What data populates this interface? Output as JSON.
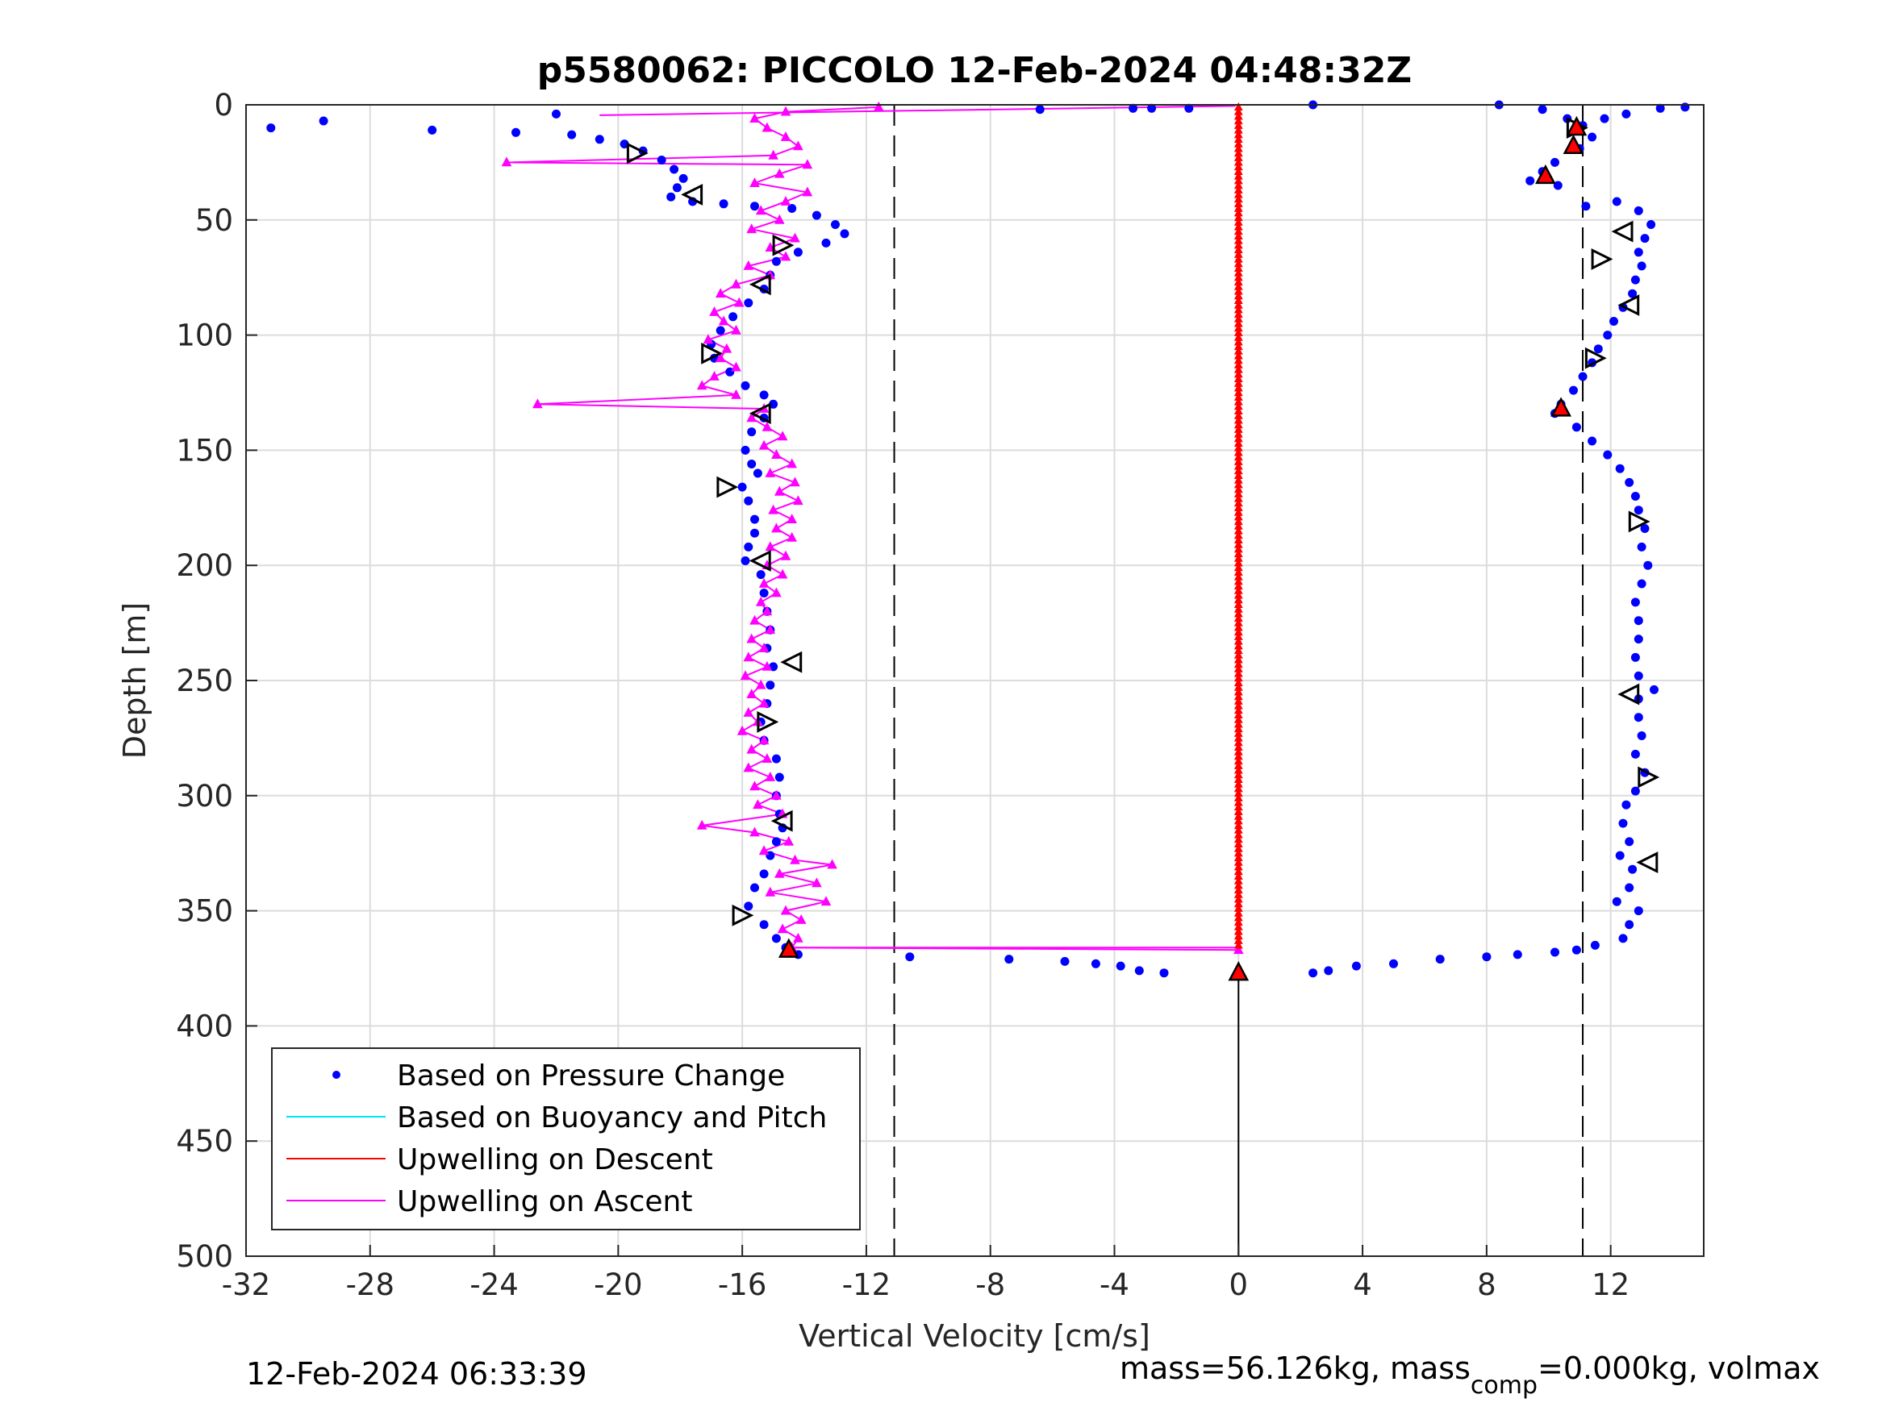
{
  "chart_data": {
    "type": "scatter",
    "title": "p5580062: PICCOLO 12-Feb-2024 04:48:32Z",
    "xlabel": "Vertical Velocity [cm/s]",
    "ylabel": "Depth [m]",
    "xlim": [
      -32,
      15
    ],
    "ylim": [
      0,
      500
    ],
    "y_reversed": true,
    "grid": true,
    "xticks": [
      -32,
      -28,
      -24,
      -20,
      -16,
      -12,
      -8,
      -4,
      0,
      4,
      8,
      12
    ],
    "yticks": [
      0,
      50,
      100,
      150,
      200,
      250,
      300,
      350,
      400,
      450,
      500
    ],
    "reference_lines_x": [
      -11.1,
      11.1
    ],
    "legend": {
      "placement": "bottom-left",
      "entries": [
        {
          "label": "Based on Pressure Change",
          "color": "#0000ff",
          "marker": "dot"
        },
        {
          "label": "Based on Buoyancy and Pitch",
          "color": "#00e5ee",
          "marker": "line"
        },
        {
          "label": "Upwelling on Descent",
          "color": "#ff0000",
          "marker": "line"
        },
        {
          "label": "Upwelling on Ascent",
          "color": "#ff00ff",
          "marker": "line"
        }
      ]
    },
    "series": [
      {
        "name": "Based on Pressure Change",
        "color": "#0000ff",
        "dive": [
          [
            -31.2,
            10
          ],
          [
            -29.5,
            7
          ],
          [
            -26,
            11
          ],
          [
            -23.3,
            12
          ],
          [
            -22,
            4
          ],
          [
            -21.5,
            13
          ],
          [
            -20.6,
            15
          ],
          [
            -19.8,
            17
          ],
          [
            -19.2,
            20
          ],
          [
            -18.6,
            24
          ],
          [
            -18.2,
            28
          ],
          [
            -17.9,
            32
          ],
          [
            -18.1,
            36
          ],
          [
            -18.3,
            40
          ],
          [
            -17.6,
            42
          ],
          [
            -16.6,
            43
          ],
          [
            -15.6,
            44
          ],
          [
            -14.4,
            45
          ],
          [
            -13.6,
            48
          ],
          [
            -13.0,
            52
          ],
          [
            -12.7,
            56
          ],
          [
            -13.3,
            60
          ],
          [
            -14.2,
            64
          ],
          [
            -14.9,
            68
          ],
          [
            -15.1,
            74
          ],
          [
            -15.3,
            80
          ],
          [
            -15.8,
            86
          ],
          [
            -16.3,
            92
          ],
          [
            -16.7,
            98
          ],
          [
            -17.0,
            104
          ],
          [
            -16.9,
            110
          ],
          [
            -16.4,
            116
          ],
          [
            -15.9,
            122
          ],
          [
            -15.3,
            126
          ],
          [
            -15.0,
            130
          ],
          [
            -15.3,
            136
          ],
          [
            -15.7,
            142
          ],
          [
            -15.9,
            150
          ],
          [
            -15.7,
            156
          ],
          [
            -15.5,
            160
          ],
          [
            -16.0,
            166
          ],
          [
            -15.8,
            172
          ],
          [
            -15.6,
            180
          ],
          [
            -15.6,
            186
          ],
          [
            -15.8,
            192
          ],
          [
            -15.9,
            198
          ],
          [
            -15.4,
            204
          ],
          [
            -15.3,
            212
          ],
          [
            -15.2,
            220
          ],
          [
            -15.1,
            228
          ],
          [
            -15.2,
            236
          ],
          [
            -15.0,
            244
          ],
          [
            -15.1,
            252
          ],
          [
            -15.2,
            260
          ],
          [
            -15.4,
            268
          ],
          [
            -15.3,
            276
          ],
          [
            -14.9,
            284
          ],
          [
            -14.8,
            292
          ],
          [
            -14.9,
            300
          ],
          [
            -14.8,
            308
          ],
          [
            -14.7,
            314
          ],
          [
            -14.9,
            320
          ],
          [
            -15.1,
            326
          ],
          [
            -15.3,
            334
          ],
          [
            -15.6,
            340
          ],
          [
            -15.8,
            348
          ],
          [
            -15.3,
            356
          ],
          [
            -14.9,
            362
          ],
          [
            -14.6,
            366
          ],
          [
            -14.2,
            369
          ],
          [
            -10.6,
            370
          ],
          [
            -7.4,
            371
          ],
          [
            -5.6,
            372
          ],
          [
            -4.6,
            373
          ],
          [
            -3.8,
            374
          ],
          [
            -3.2,
            376
          ],
          [
            -2.4,
            377
          ]
        ],
        "climb": [
          [
            -6.4,
            2
          ],
          [
            -3.4,
            1.5
          ],
          [
            -2.8,
            1.5
          ],
          [
            -1.6,
            1.5
          ],
          [
            2.4,
            0
          ],
          [
            8.4,
            0
          ],
          [
            9.8,
            2
          ],
          [
            10.6,
            6
          ],
          [
            11.1,
            9
          ],
          [
            11.4,
            14
          ],
          [
            11.0,
            19
          ],
          [
            10.2,
            25
          ],
          [
            9.8,
            29
          ],
          [
            9.4,
            33
          ],
          [
            10.3,
            35
          ],
          [
            11.2,
            44
          ],
          [
            12.2,
            42
          ],
          [
            12.9,
            46
          ],
          [
            13.3,
            52
          ],
          [
            13.1,
            58
          ],
          [
            12.9,
            64
          ],
          [
            13.0,
            70
          ],
          [
            12.8,
            76
          ],
          [
            12.7,
            82
          ],
          [
            12.4,
            88
          ],
          [
            12.1,
            94
          ],
          [
            11.9,
            100
          ],
          [
            11.6,
            106
          ],
          [
            11.4,
            112
          ],
          [
            11.1,
            118
          ],
          [
            10.8,
            124
          ],
          [
            10.4,
            130
          ],
          [
            10.2,
            134
          ],
          [
            10.9,
            140
          ],
          [
            11.4,
            146
          ],
          [
            11.9,
            152
          ],
          [
            12.3,
            158
          ],
          [
            12.6,
            164
          ],
          [
            12.8,
            170
          ],
          [
            12.9,
            176
          ],
          [
            13.1,
            184
          ],
          [
            13.0,
            192
          ],
          [
            13.2,
            200
          ],
          [
            13.0,
            208
          ],
          [
            12.8,
            216
          ],
          [
            12.9,
            224
          ],
          [
            12.9,
            232
          ],
          [
            12.8,
            240
          ],
          [
            12.9,
            248
          ],
          [
            13.4,
            254
          ],
          [
            12.9,
            258
          ],
          [
            12.9,
            266
          ],
          [
            13.0,
            274
          ],
          [
            12.8,
            282
          ],
          [
            13.1,
            290
          ],
          [
            12.8,
            298
          ],
          [
            12.5,
            304
          ],
          [
            12.4,
            312
          ],
          [
            12.6,
            320
          ],
          [
            12.3,
            326
          ],
          [
            12.7,
            332
          ],
          [
            12.6,
            340
          ],
          [
            12.2,
            346
          ],
          [
            12.9,
            350
          ],
          [
            12.6,
            356
          ],
          [
            12.4,
            362
          ],
          [
            11.5,
            365
          ],
          [
            10.9,
            367
          ],
          [
            10.2,
            368
          ],
          [
            9.0,
            369
          ],
          [
            8.0,
            370
          ],
          [
            6.5,
            371
          ],
          [
            5.0,
            373
          ],
          [
            3.8,
            374
          ],
          [
            2.9,
            376
          ],
          [
            2.4,
            377
          ]
        ],
        "surface_points": [
          [
            14.4,
            1
          ],
          [
            13.6,
            1.5
          ],
          [
            12.5,
            4
          ],
          [
            11.8,
            6
          ]
        ]
      },
      {
        "name": "Upwelling on Descent",
        "color": "#ff0000",
        "x_const": 0,
        "depth_from": 1,
        "depth_to": 366
      },
      {
        "name": "Upwelling on Ascent",
        "color": "#ff00ff",
        "points": [
          [
            -11.6,
            1
          ],
          [
            -14.6,
            3
          ],
          [
            -15.6,
            6
          ],
          [
            -15.2,
            10
          ],
          [
            -14.6,
            14
          ],
          [
            -14.2,
            18
          ],
          [
            -15.0,
            22
          ],
          [
            -23.6,
            25
          ],
          [
            -13.9,
            26
          ],
          [
            -14.8,
            30
          ],
          [
            -15.6,
            34
          ],
          [
            -13.9,
            38
          ],
          [
            -14.6,
            42
          ],
          [
            -15.4,
            46
          ],
          [
            -14.8,
            50
          ],
          [
            -15.7,
            54
          ],
          [
            -14.3,
            58
          ],
          [
            -15.1,
            62
          ],
          [
            -14.6,
            66
          ],
          [
            -15.8,
            70
          ],
          [
            -15.1,
            74
          ],
          [
            -16.2,
            78
          ],
          [
            -16.7,
            82
          ],
          [
            -16.1,
            86
          ],
          [
            -16.9,
            90
          ],
          [
            -16.6,
            94
          ],
          [
            -16.2,
            98
          ],
          [
            -17.1,
            102
          ],
          [
            -16.5,
            106
          ],
          [
            -16.7,
            110
          ],
          [
            -16.2,
            114
          ],
          [
            -16.9,
            118
          ],
          [
            -17.3,
            122
          ],
          [
            -16.2,
            126
          ],
          [
            -22.6,
            130
          ],
          [
            -15.3,
            132
          ],
          [
            -15.7,
            136
          ],
          [
            -15.2,
            140
          ],
          [
            -14.7,
            144
          ],
          [
            -15.3,
            148
          ],
          [
            -14.9,
            152
          ],
          [
            -14.4,
            156
          ],
          [
            -15.1,
            160
          ],
          [
            -14.3,
            164
          ],
          [
            -14.8,
            168
          ],
          [
            -14.2,
            172
          ],
          [
            -15.0,
            176
          ],
          [
            -14.4,
            180
          ],
          [
            -14.9,
            184
          ],
          [
            -14.4,
            188
          ],
          [
            -15.1,
            192
          ],
          [
            -14.6,
            196
          ],
          [
            -15.2,
            200
          ],
          [
            -14.7,
            204
          ],
          [
            -15.3,
            208
          ],
          [
            -14.9,
            212
          ],
          [
            -15.4,
            216
          ],
          [
            -15.2,
            220
          ],
          [
            -15.6,
            224
          ],
          [
            -15.1,
            228
          ],
          [
            -15.7,
            232
          ],
          [
            -15.3,
            236
          ],
          [
            -15.8,
            240
          ],
          [
            -15.2,
            244
          ],
          [
            -15.9,
            248
          ],
          [
            -15.4,
            252
          ],
          [
            -15.7,
            256
          ],
          [
            -15.3,
            260
          ],
          [
            -15.8,
            264
          ],
          [
            -15.5,
            268
          ],
          [
            -16.0,
            272
          ],
          [
            -15.3,
            276
          ],
          [
            -15.7,
            280
          ],
          [
            -15.2,
            284
          ],
          [
            -15.8,
            288
          ],
          [
            -15.1,
            292
          ],
          [
            -15.6,
            296
          ],
          [
            -14.9,
            300
          ],
          [
            -15.5,
            304
          ],
          [
            -14.7,
            308
          ],
          [
            -17.3,
            313
          ],
          [
            -15.6,
            316
          ],
          [
            -14.5,
            320
          ],
          [
            -15.3,
            324
          ],
          [
            -14.3,
            328
          ],
          [
            -13.1,
            330
          ],
          [
            -14.8,
            334
          ],
          [
            -13.6,
            338
          ],
          [
            -15.1,
            342
          ],
          [
            -13.3,
            346
          ],
          [
            -14.6,
            350
          ],
          [
            -14.1,
            354
          ],
          [
            -14.7,
            358
          ],
          [
            -14.2,
            362
          ],
          [
            -14.4,
            366
          ],
          [
            0,
            367
          ]
        ],
        "top_connector": [
          [
            -20.6,
            4.5
          ],
          [
            -0.1,
            0.5
          ]
        ],
        "bottom_connector": [
          [
            -14.5,
            366
          ],
          [
            0,
            366
          ]
        ]
      }
    ],
    "open_triangle_markers": [
      [
        -19.4,
        21,
        "right"
      ],
      [
        -17.6,
        39,
        "left"
      ],
      [
        -14.7,
        61,
        "right"
      ],
      [
        -15.4,
        78,
        "left"
      ],
      [
        -17.0,
        108,
        "right"
      ],
      [
        -15.4,
        134,
        "left"
      ],
      [
        -16.5,
        166,
        "right"
      ],
      [
        -15.4,
        198,
        "left"
      ],
      [
        -14.4,
        242,
        "left"
      ],
      [
        -15.2,
        268,
        "right"
      ],
      [
        -14.7,
        311,
        "left"
      ],
      [
        -16.0,
        352,
        "right"
      ],
      [
        12.4,
        55,
        "left"
      ],
      [
        11.7,
        67,
        "right"
      ],
      [
        12.6,
        87,
        "left"
      ],
      [
        11.5,
        110,
        "right"
      ],
      [
        12.9,
        181,
        "right"
      ],
      [
        12.6,
        256,
        "left"
      ],
      [
        13.2,
        292,
        "right"
      ],
      [
        13.2,
        329,
        "left"
      ],
      [
        10.9,
        10,
        "right"
      ]
    ],
    "red_triangle_markers": [
      [
        10.9,
        10
      ],
      [
        10.8,
        18
      ],
      [
        9.9,
        31
      ],
      [
        10.4,
        132
      ],
      [
        -14.5,
        367
      ],
      [
        0,
        377
      ]
    ]
  },
  "footer": {
    "timestamp": "12-Feb-2024 06:33:39",
    "mass_text": "mass=56.126kg, mass",
    "mass_sub": "comp",
    "mass_tail": "=0.000kg, volmax"
  }
}
